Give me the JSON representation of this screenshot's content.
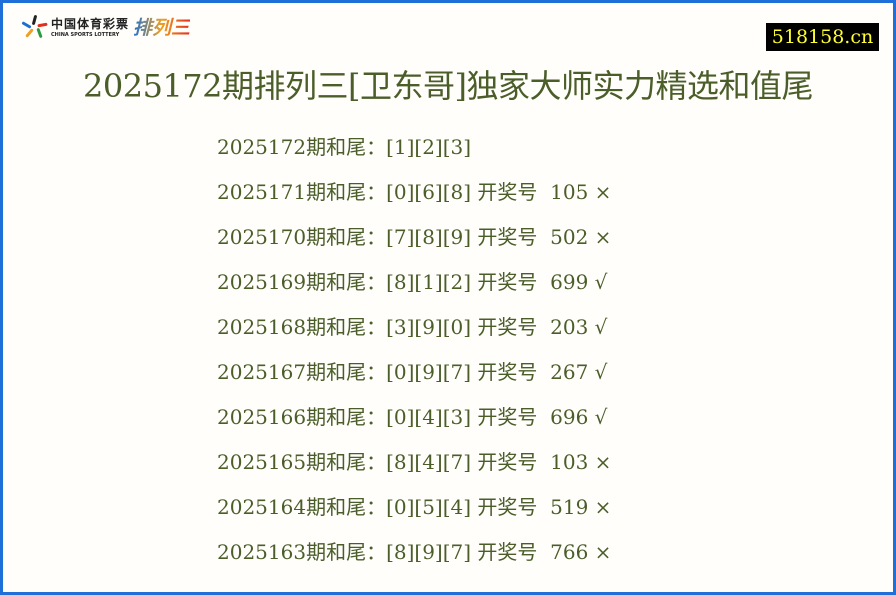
{
  "logo": {
    "cn": "中国体育彩票",
    "en": "CHINA SPORTS LOTTERY",
    "game": "排列三"
  },
  "badge": "518158.cn",
  "title": "2025172期排列三[卫东哥]独家大师实力精选和值尾",
  "rows": [
    {
      "text": "2025172期和尾：[1][2][3]"
    },
    {
      "text": "2025171期和尾：[0][6][8] 开奖号  105 ×"
    },
    {
      "text": "2025170期和尾：[7][8][9] 开奖号  502 ×"
    },
    {
      "text": "2025169期和尾：[8][1][2] 开奖号  699 √"
    },
    {
      "text": "2025168期和尾：[3][9][0] 开奖号  203 √"
    },
    {
      "text": "2025167期和尾：[0][9][7] 开奖号  267 √"
    },
    {
      "text": "2025166期和尾：[0][4][3] 开奖号  696 √"
    },
    {
      "text": "2025165期和尾：[8][4][7] 开奖号  103 ×"
    },
    {
      "text": "2025164期和尾：[0][5][4] 开奖号  519 ×"
    },
    {
      "text": "2025163期和尾：[8][9][7] 开奖号  766 ×"
    }
  ]
}
